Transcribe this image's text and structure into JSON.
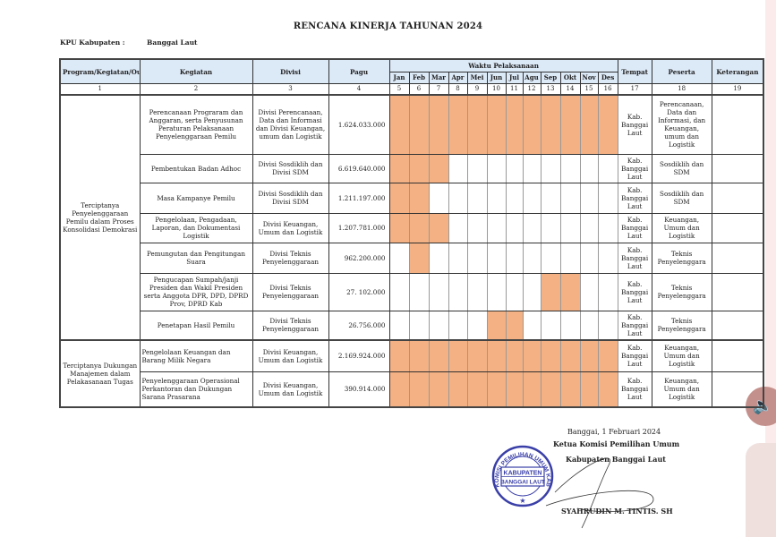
{
  "title": "RENCANA KINERJA TAHUNAN 2024",
  "kpu_label": "KPU Kabupaten :",
  "kpu_value": "Banggai Laut",
  "headers": {
    "program": "Program/Kegiatan/Output",
    "kegiatan": "Kegiatan",
    "divisi": "Divisi",
    "pagu": "Pagu",
    "waktu": "Waktu Pelaksanaan",
    "tempat": "Tempat",
    "peserta": "Peserta",
    "keterangan": "Keterangan",
    "months": [
      "Jan",
      "Feb",
      "Mar",
      "Apr",
      "Mei",
      "Jun",
      "Jul",
      "Agu",
      "Sep",
      "Okt",
      "Nov",
      "Des"
    ],
    "numbers": [
      "1",
      "2",
      "3",
      "4",
      "5",
      "6",
      "7",
      "8",
      "9",
      "10",
      "11",
      "12",
      "13",
      "14",
      "15",
      "16",
      "17",
      "18",
      "19"
    ]
  },
  "colors": {
    "header_fill": "#dce9f7",
    "active_month": "#f4b183",
    "stamp": "#3a3fa8"
  },
  "groups": [
    {
      "program": "Terciptanya Penyelenggaraan Pemilu dalam Proses Konsolidasi Demokrasi",
      "rows": [
        {
          "kegiatan": "Perencanaan Prograram dan Anggaran, serta Penyusunan Peraturan Pelaksanaan Penyelenggaraan Pemilu",
          "divisi": "Divisi Perencanaan, Data dan Informasi dan Divisi Keuangan, umum dan Logistik",
          "pagu": "1.624.033.000",
          "months": [
            1,
            1,
            1,
            1,
            1,
            1,
            1,
            1,
            1,
            1,
            1,
            1
          ],
          "tempat": "Kab. Banggai Laut",
          "peserta": "Perencanaan, Data dan Informasi, dan Keuangan, umum dan Logistik",
          "keterangan": ""
        },
        {
          "kegiatan": "Pembentukan Badan Adhoc",
          "divisi": "Divisi Sosdiklih dan Divisi SDM",
          "pagu": "6.619.640.000",
          "months": [
            1,
            1,
            1,
            0,
            0,
            0,
            0,
            0,
            0,
            0,
            0,
            0
          ],
          "tempat": "Kab. Banggai Laut",
          "peserta": "Sosdiklih dan SDM",
          "keterangan": ""
        },
        {
          "kegiatan": "Masa Kampanye Pemilu",
          "divisi": "Divisi Sosdiklih dan Divisi SDM",
          "pagu": "1.211.197.000",
          "months": [
            1,
            1,
            0,
            0,
            0,
            0,
            0,
            0,
            0,
            0,
            0,
            0
          ],
          "tempat": "Kab. Banggai Laut",
          "peserta": "Sosdiklih dan SDM",
          "keterangan": ""
        },
        {
          "kegiatan": "Pengelolaan, Pengadaan, Laporan, dan Dokumentasi Logistik",
          "divisi": "Divisi Keuangan, Umum dan Logistik",
          "pagu": "1.207.781.000",
          "months": [
            1,
            1,
            1,
            0,
            0,
            0,
            0,
            0,
            0,
            0,
            0,
            0
          ],
          "tempat": "Kab. Banggai Laut",
          "peserta": "Keuangan, Umum dan Logistik",
          "keterangan": ""
        },
        {
          "kegiatan": "Pemungutan dan Pengitungan Suara",
          "divisi": "Divisi Teknis Penyelenggaraan",
          "pagu": "962.200.000",
          "months": [
            0,
            1,
            0,
            0,
            0,
            0,
            0,
            0,
            0,
            0,
            0,
            0
          ],
          "tempat": "Kab. Banggai Laut",
          "peserta": "Teknis Penyelenggara",
          "keterangan": ""
        },
        {
          "kegiatan": "Pengucapan Sumpah/janji Presiden dan Wakil Presiden serta Anggota DPR, DPD, DPRD Prov, DPRD Kab",
          "divisi": "Divisi Teknis Penyelenggaraan",
          "pagu": "27. 102.000",
          "months": [
            0,
            0,
            0,
            0,
            0,
            0,
            0,
            0,
            1,
            1,
            0,
            0
          ],
          "tempat": "Kab. Banggai Laut",
          "peserta": "Teknis Penyelenggara",
          "keterangan": ""
        },
        {
          "kegiatan": "Penetapan Hasil Pemilu",
          "divisi": "Divisi Teknis Penyelenggaraan",
          "pagu": "26.756.000",
          "months": [
            0,
            0,
            0,
            0,
            0,
            1,
            1,
            0,
            0,
            0,
            0,
            0
          ],
          "tempat": "Kab. Banggai Laut",
          "peserta": "Teknis Penyelenggara",
          "keterangan": ""
        }
      ]
    },
    {
      "program": "Terciptanya Dukungan Manajemen dalam Pelakasanaan Tugas",
      "rows": [
        {
          "kegiatan": "Pengelolaan Keuangan dan Barang Milik Negara",
          "divisi": "Divisi Keuangan, Umum dan Logistik",
          "pagu": "2.169.924.000",
          "months": [
            1,
            1,
            1,
            1,
            1,
            1,
            1,
            1,
            1,
            1,
            1,
            1
          ],
          "tempat": "Kab. Banggai Laut",
          "peserta": "Keuangan, Umum dan Logistik",
          "keterangan": "",
          "align": "left"
        },
        {
          "kegiatan": "Penyelenggaraan Operasional Perkantoran dan Dukungan Sarana Prasarana",
          "divisi": "Divisi Keuangan, Umum dan Logistik",
          "pagu": "390.914.000",
          "months": [
            1,
            1,
            1,
            1,
            1,
            1,
            1,
            1,
            1,
            1,
            1,
            1
          ],
          "tempat": "Kab. Banggai Laut",
          "peserta": "Keuangan, Umum dan Logistik",
          "keterangan": "",
          "align": "left"
        }
      ]
    }
  ],
  "signature": {
    "place_date": "Banggai, 1 Februari 2024",
    "position_1": "Ketua Komisi Pemilihan Umum",
    "position_2": "Kabupaten Banggai Laut",
    "name": "SYAHRUDIN M. TINTIS. SH",
    "stamp_text": "KOMISI PEMILIHAN UMUM KABUPATEN",
    "stamp_center": "KABUPATEN BANGGAI LAUT"
  },
  "speaker_icon": "speaker-icon"
}
